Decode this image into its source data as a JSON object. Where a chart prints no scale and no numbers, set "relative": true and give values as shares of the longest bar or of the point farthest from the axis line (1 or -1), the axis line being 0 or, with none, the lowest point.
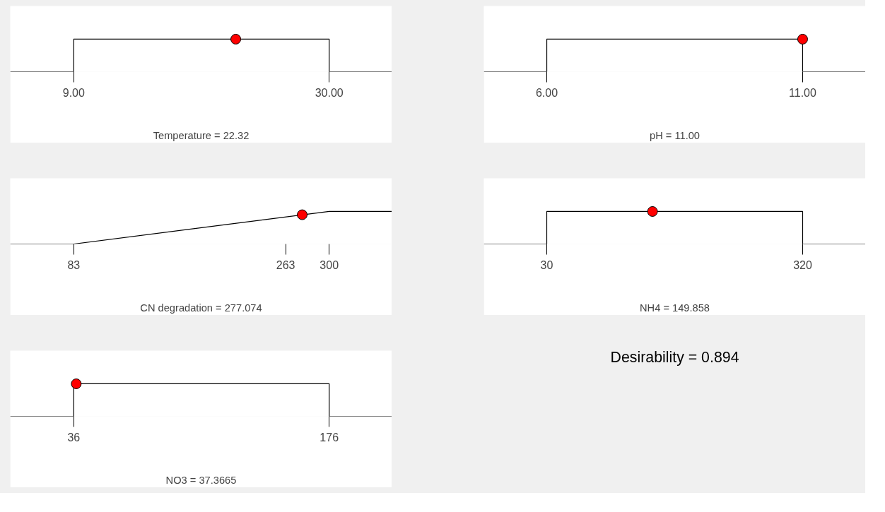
{
  "chart_data": [
    {
      "type": "line",
      "xlabel": "Temperature = 22.32",
      "relative": true,
      "tick_labels": "x",
      "xlim": [
        3.78,
        35.16
      ],
      "xticks": [
        {
          "value": 9,
          "label": "9.00"
        },
        {
          "value": 30,
          "label": "30.00"
        }
      ],
      "series": [
        {
          "type": "line",
          "color": "#000000",
          "x": [
            3.78,
            9,
            9,
            30,
            30,
            35.16
          ],
          "values": [
            0,
            0,
            1,
            1,
            0,
            0
          ]
        },
        {
          "type": "scatter",
          "marker": "circle",
          "color": "#ff0000",
          "x": [
            22.32
          ],
          "values": [
            1
          ]
        }
      ]
    },
    {
      "type": "line",
      "xlabel": "pH = 11.00",
      "relative": true,
      "tick_labels": "x",
      "xlim": [
        4.77,
        12.23
      ],
      "xticks": [
        {
          "value": 6,
          "label": "6.00"
        },
        {
          "value": 11,
          "label": "11.00"
        }
      ],
      "series": [
        {
          "type": "line",
          "color": "#000000",
          "x": [
            4.77,
            6,
            6,
            11,
            11,
            12.23
          ],
          "values": [
            0,
            0,
            1,
            1,
            0,
            0
          ]
        },
        {
          "type": "scatter",
          "marker": "circle",
          "color": "#ff0000",
          "x": [
            11
          ],
          "values": [
            1
          ]
        }
      ]
    },
    {
      "type": "line",
      "xlabel": "CN degradation = 277.074",
      "relative": true,
      "tick_labels": "x",
      "xlim": [
        29.1,
        353.3
      ],
      "xticks": [
        83,
        263,
        300
      ],
      "series": [
        {
          "type": "line",
          "color": "#000000",
          "x": [
            29.1,
            83,
            300,
            353.3
          ],
          "values": [
            0,
            0,
            1,
            1
          ]
        },
        {
          "type": "scatter",
          "marker": "circle",
          "color": "#ff0000",
          "x": [
            277.074
          ],
          "values": [
            0.9
          ]
        }
      ]
    },
    {
      "type": "line",
      "xlabel": "NH4 = 149.858",
      "relative": true,
      "tick_labels": "x",
      "xlim": [
        -41.3,
        391.3
      ],
      "xticks": [
        30,
        320
      ],
      "series": [
        {
          "type": "line",
          "color": "#000000",
          "x": [
            -41.3,
            30,
            30,
            320,
            320,
            391.3
          ],
          "values": [
            0,
            0,
            1,
            1,
            0,
            0
          ]
        },
        {
          "type": "scatter",
          "marker": "circle",
          "color": "#ff0000",
          "x": [
            149.858
          ],
          "values": [
            1
          ]
        }
      ]
    },
    {
      "type": "line",
      "xlabel": "NO3 = 37.3665",
      "relative": true,
      "tick_labels": "x",
      "xlim": [
        1.19,
        210.4
      ],
      "xticks": [
        36,
        176
      ],
      "series": [
        {
          "type": "line",
          "color": "#000000",
          "x": [
            1.19,
            36,
            36,
            176,
            176,
            210.4
          ],
          "values": [
            0,
            0,
            1,
            1,
            0,
            0
          ]
        },
        {
          "type": "scatter",
          "marker": "circle",
          "color": "#ff0000",
          "x": [
            37.3665
          ],
          "values": [
            1
          ]
        }
      ]
    },
    {
      "type": "other",
      "title": "Desirability = 0.894"
    }
  ]
}
